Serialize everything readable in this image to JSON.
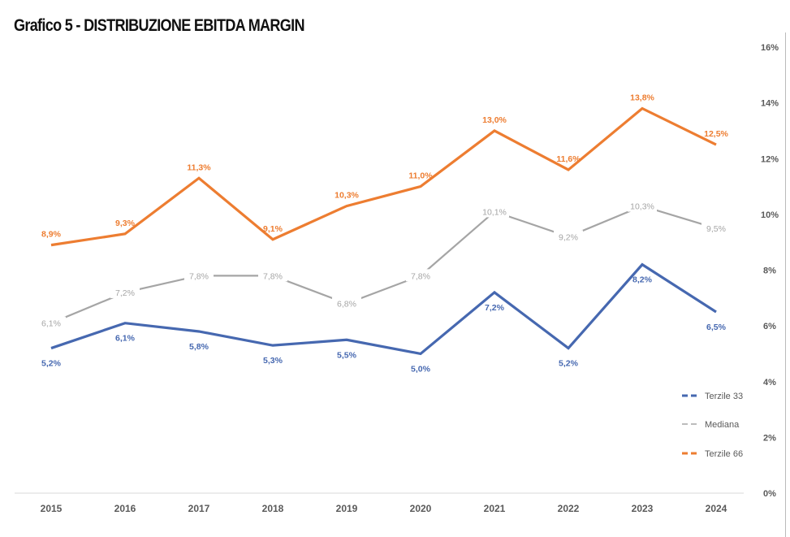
{
  "chart_data": {
    "type": "line",
    "title": "Grafico 5 - DISTRIBUZIONE EBITDA MARGIN",
    "xlabel": "",
    "ylabel": "",
    "categories": [
      "2015",
      "2016",
      "2017",
      "2018",
      "2019",
      "2020",
      "2021",
      "2022",
      "2023",
      "2024"
    ],
    "ylim": [
      0,
      16
    ],
    "yticks": [
      0,
      2,
      4,
      6,
      8,
      10,
      12,
      14,
      16
    ],
    "ytick_labels": [
      "0%",
      "2%",
      "4%",
      "6%",
      "8%",
      "10%",
      "12%",
      "14%",
      "16%"
    ],
    "y_axis_side": "right",
    "grid": false,
    "legend_position": "bottom-right",
    "series": [
      {
        "name": "Terzile 33",
        "color": "#4668b0",
        "label_pos": "below",
        "values": [
          5.2,
          6.1,
          5.8,
          5.3,
          5.5,
          5.0,
          7.2,
          5.2,
          8.2,
          6.5
        ],
        "labels": [
          "5,2%",
          "6,1%",
          "5,8%",
          "5,3%",
          "5,5%",
          "5,0%",
          "7,2%",
          "5,2%",
          "8,2%",
          "6,5%"
        ]
      },
      {
        "name": "Mediana",
        "color": "#a5a5a5",
        "label_pos": "center",
        "values": [
          6.1,
          7.2,
          7.8,
          7.8,
          6.8,
          7.8,
          10.1,
          9.2,
          10.3,
          9.5
        ],
        "labels": [
          "6,1%",
          "7,2%",
          "7,8%",
          "7,8%",
          "6,8%",
          "7,8%",
          "10,1%",
          "9,2%",
          "10,3%",
          "9,5%"
        ]
      },
      {
        "name": "Terzile 66",
        "color": "#ed7d31",
        "label_pos": "above",
        "values": [
          8.9,
          9.3,
          11.3,
          9.1,
          10.3,
          11.0,
          13.0,
          11.6,
          13.8,
          12.5
        ],
        "labels": [
          "8,9%",
          "9,3%",
          "11,3%",
          "9,1%",
          "10,3%",
          "11,0%",
          "13,0%",
          "11,6%",
          "13,8%",
          "12,5%"
        ]
      }
    ]
  }
}
